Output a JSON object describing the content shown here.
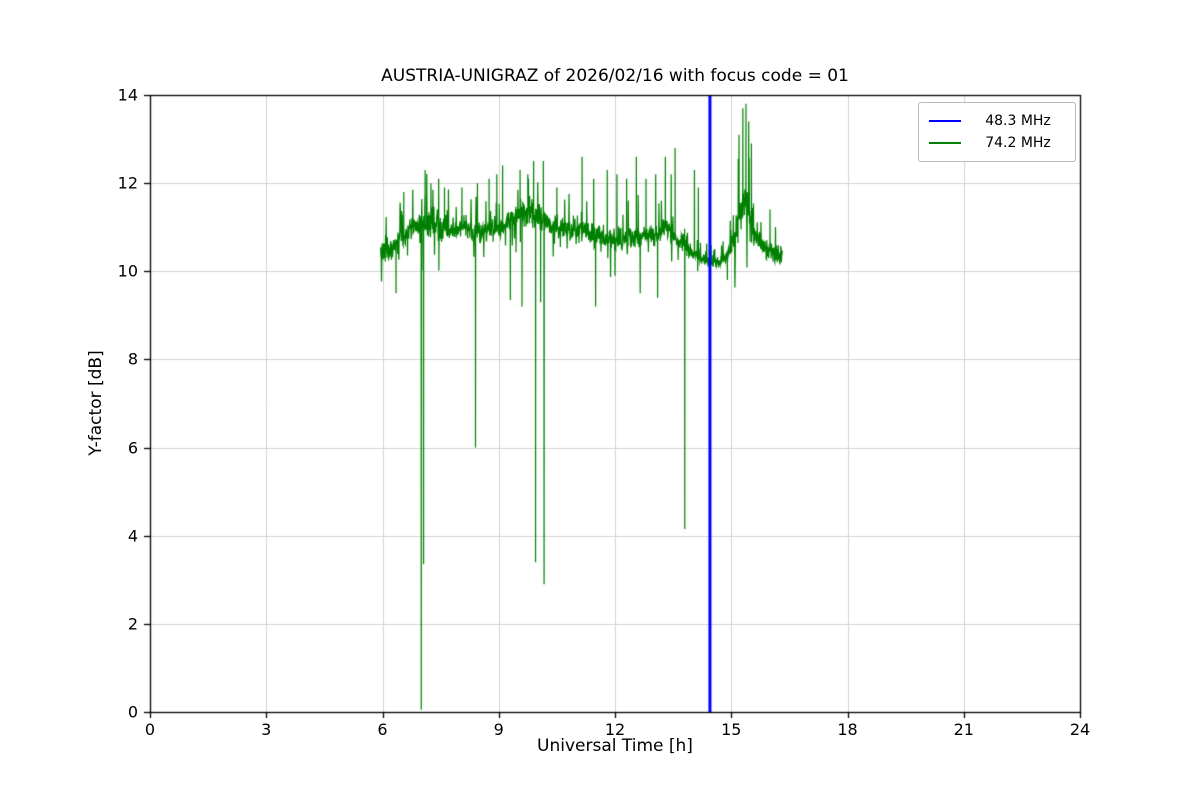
{
  "chart_data": {
    "type": "line",
    "title": "AUSTRIA-UNIGRAZ of 2026/02/16 with focus code = 01",
    "xlabel": "Universal Time [h]",
    "ylabel": "Y-factor [dB]",
    "xlim": [
      0,
      24
    ],
    "ylim": [
      0,
      14
    ],
    "xticks": [
      0,
      3,
      6,
      9,
      12,
      15,
      18,
      21,
      24
    ],
    "yticks": [
      0,
      2,
      4,
      6,
      8,
      10,
      12,
      14
    ],
    "grid": true,
    "grid_color": "#d3d3d3",
    "frame_color": "#000000",
    "legend_position": "upper right",
    "series": [
      {
        "name": "48.3 MHz",
        "color": "#0000ff",
        "style": "vline",
        "x": 14.45,
        "y_span": [
          0,
          14
        ],
        "linewidth": 3
      },
      {
        "name": "74.2 MHz",
        "color": "#008000",
        "style": "noisy-line",
        "x_range": [
          5.95,
          16.32
        ],
        "linewidth": 1.2,
        "baseline": [
          [
            5.95,
            10.42
          ],
          [
            6.1,
            10.45
          ],
          [
            6.3,
            10.6
          ],
          [
            6.5,
            10.75
          ],
          [
            6.7,
            10.95
          ],
          [
            6.9,
            11.0
          ],
          [
            7.1,
            11.05
          ],
          [
            7.35,
            11.1
          ],
          [
            7.6,
            11.0
          ],
          [
            7.9,
            10.95
          ],
          [
            8.1,
            11.0
          ],
          [
            8.35,
            10.9
          ],
          [
            8.6,
            10.9
          ],
          [
            8.85,
            10.95
          ],
          [
            9.1,
            11.05
          ],
          [
            9.35,
            11.15
          ],
          [
            9.6,
            11.3
          ],
          [
            9.8,
            11.35
          ],
          [
            10.0,
            11.25
          ],
          [
            10.2,
            11.1
          ],
          [
            10.45,
            11.0
          ],
          [
            10.7,
            10.95
          ],
          [
            11.0,
            10.9
          ],
          [
            11.3,
            10.85
          ],
          [
            11.6,
            10.8
          ],
          [
            11.9,
            10.75
          ],
          [
            12.2,
            10.7
          ],
          [
            12.5,
            10.75
          ],
          [
            12.8,
            10.8
          ],
          [
            13.0,
            10.8
          ],
          [
            13.2,
            10.95
          ],
          [
            13.35,
            11.0
          ],
          [
            13.5,
            10.85
          ],
          [
            13.7,
            10.7
          ],
          [
            13.9,
            10.5
          ],
          [
            14.1,
            10.35
          ],
          [
            14.35,
            10.25
          ],
          [
            14.6,
            10.2
          ],
          [
            14.85,
            10.25
          ],
          [
            15.0,
            10.6
          ],
          [
            15.15,
            11.1
          ],
          [
            15.3,
            11.5
          ],
          [
            15.4,
            11.6
          ],
          [
            15.5,
            11.2
          ],
          [
            15.65,
            10.8
          ],
          [
            15.8,
            10.55
          ],
          [
            16.0,
            10.45
          ],
          [
            16.15,
            10.4
          ],
          [
            16.32,
            10.35
          ]
        ],
        "noise": {
          "seed": 20260216,
          "step": 0.008,
          "amplitude": 0.3,
          "up_spike_prob": 0.07,
          "up_spike_scale": 0.8,
          "down_spike_prob": 0.035,
          "down_spike_scale": 0.7
        },
        "noise_boost_regions": [
          [
            6.9,
            7.7,
            1.4
          ],
          [
            9.4,
            10.2,
            1.3
          ],
          [
            14.0,
            14.95,
            0.5
          ],
          [
            15.05,
            15.6,
            2.2
          ],
          [
            15.6,
            16.35,
            0.9
          ]
        ],
        "up_spikes": [
          [
            6.55,
            11.8
          ],
          [
            7.1,
            12.3
          ],
          [
            7.25,
            12.0
          ],
          [
            7.45,
            12.1
          ],
          [
            7.6,
            11.9
          ],
          [
            8.05,
            11.9
          ],
          [
            8.45,
            12.0
          ],
          [
            8.75,
            12.1
          ],
          [
            8.95,
            12.2
          ],
          [
            9.1,
            12.4
          ],
          [
            9.55,
            12.3
          ],
          [
            9.75,
            12.2
          ],
          [
            9.9,
            12.5
          ],
          [
            10.15,
            12.5
          ],
          [
            10.5,
            11.9
          ],
          [
            11.15,
            12.6
          ],
          [
            11.45,
            12.1
          ],
          [
            11.8,
            12.3
          ],
          [
            12.05,
            12.2
          ],
          [
            12.3,
            12.1
          ],
          [
            12.55,
            12.6
          ],
          [
            12.8,
            12.1
          ],
          [
            13.05,
            12.2
          ],
          [
            13.3,
            12.6
          ],
          [
            13.45,
            12.2
          ],
          [
            13.55,
            12.8
          ],
          [
            14.05,
            12.3
          ],
          [
            14.15,
            11.9
          ],
          [
            15.2,
            13.1
          ],
          [
            15.3,
            13.7
          ],
          [
            15.38,
            13.8
          ],
          [
            15.45,
            13.4
          ],
          [
            15.52,
            12.9
          ],
          [
            16.0,
            11.4
          ]
        ],
        "dropouts": [
          [
            6.35,
            9.5
          ],
          [
            7.0,
            0.05
          ],
          [
            7.06,
            3.35
          ],
          [
            8.4,
            6.0
          ],
          [
            9.3,
            9.35
          ],
          [
            9.6,
            9.2
          ],
          [
            9.95,
            3.4
          ],
          [
            10.08,
            9.3
          ],
          [
            10.17,
            2.9
          ],
          [
            11.5,
            9.2
          ],
          [
            12.0,
            9.9
          ],
          [
            12.65,
            9.5
          ],
          [
            13.1,
            9.4
          ],
          [
            13.8,
            4.15
          ],
          [
            14.9,
            9.8
          ]
        ]
      }
    ]
  }
}
